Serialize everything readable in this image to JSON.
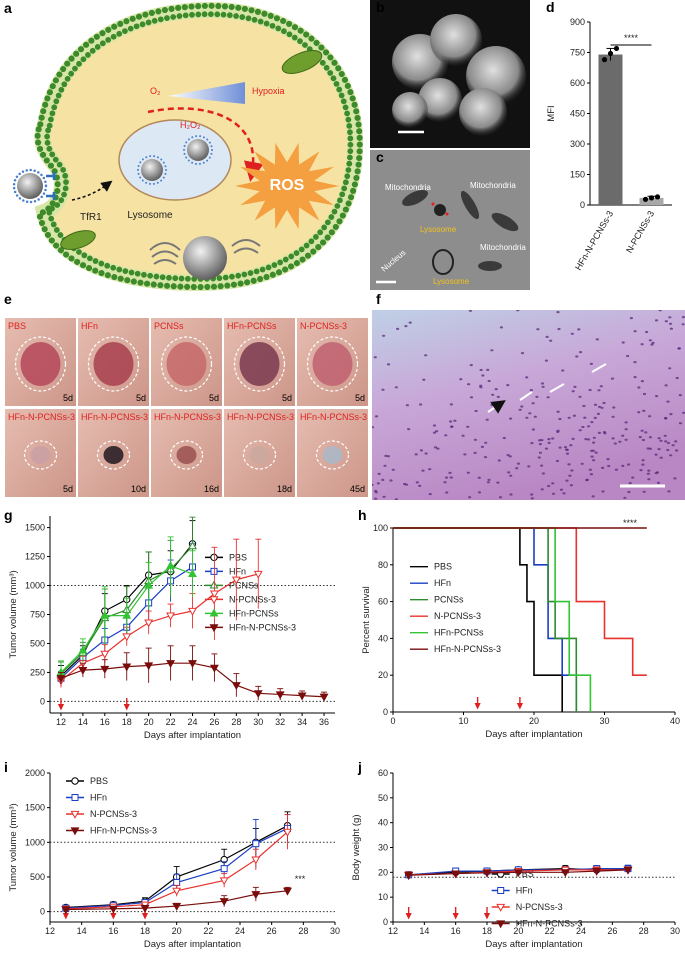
{
  "panel_letters": [
    "a",
    "b",
    "c",
    "d",
    "e",
    "f",
    "g",
    "h",
    "i",
    "j"
  ],
  "illustration": {
    "oxygen": "O₂",
    "hypoxia": "Hypoxia",
    "hydrogen_peroxide": "H₂O₂",
    "ros": "ROS",
    "receptor": "TfR1",
    "lysosome": "Lysosome"
  },
  "micrograph": {
    "labels": [
      "Mitochondria",
      "Mitochondria",
      "Lysosome",
      "Mitochondria",
      "Nucleus",
      "Lysosome"
    ]
  },
  "photos": [
    {
      "group": "PBS",
      "day": "5d"
    },
    {
      "group": "HFn",
      "day": "5d"
    },
    {
      "group": "PCNSs",
      "day": "5d"
    },
    {
      "group": "HFn-PCNSs",
      "day": "5d"
    },
    {
      "group": "N-PCNSs-3",
      "day": "5d"
    },
    {
      "group": "HFn-N-PCNSs-3",
      "day": "5d"
    },
    {
      "group": "HFn-N-PCNSs-3",
      "day": "10d"
    },
    {
      "group": "HFn-N-PCNSs-3",
      "day": "16d"
    },
    {
      "group": "HFn-N-PCNSs-3",
      "day": "18d"
    },
    {
      "group": "HFn-N-PCNSs-3",
      "day": "45d"
    }
  ],
  "chart_data": [
    {
      "type": "bar",
      "categories": [
        "HFn-N-PCNSs-3",
        "N-PCNSs-3"
      ],
      "values": [
        740,
        35
      ],
      "errors": [
        30,
        8
      ],
      "points": [
        [
          715,
          745,
          770
        ],
        [
          28,
          35,
          40
        ]
      ],
      "colors": [
        "#6b6b6b",
        "#a8a8a8"
      ],
      "ylabel": "MFI",
      "ylim": [
        0,
        900
      ],
      "yticks": [
        0,
        150,
        300,
        450,
        600,
        750,
        900
      ],
      "annotation": "****"
    },
    {
      "type": "line",
      "xlabel": "Days after implantation",
      "ylabel": "Tumor volume (mm³)",
      "xlim": [
        11,
        37
      ],
      "xticks": [
        12,
        14,
        16,
        18,
        20,
        22,
        24,
        26,
        28,
        30,
        32,
        34,
        36
      ],
      "ylim": [
        -100,
        1600
      ],
      "yticks": [
        0,
        250,
        500,
        750,
        1000,
        1250,
        1500
      ],
      "reference_lines": [
        0,
        1000
      ],
      "treatment_days": [
        12,
        18
      ],
      "legend": "center-right",
      "series": [
        {
          "name": "PBS",
          "color": "#000000",
          "marker": "circle",
          "filled": false,
          "x": [
            12,
            14,
            16,
            18,
            20,
            22,
            24
          ],
          "values": [
            220,
            400,
            780,
            880,
            1090,
            1120,
            1360
          ],
          "errors": [
            90,
            80,
            150,
            120,
            200,
            180,
            200
          ]
        },
        {
          "name": "HFn",
          "color": "#1a3fc4",
          "marker": "square",
          "filled": false,
          "x": [
            12,
            14,
            16,
            18,
            20,
            22,
            24
          ],
          "values": [
            200,
            380,
            530,
            640,
            850,
            1040,
            1160
          ],
          "errors": [
            60,
            70,
            100,
            100,
            150,
            180,
            200
          ]
        },
        {
          "name": "PCNSs",
          "color": "#2e8b2e",
          "marker": "triangle",
          "filled": false,
          "x": [
            12,
            14,
            16,
            18,
            20,
            22,
            24
          ],
          "values": [
            240,
            420,
            720,
            790,
            1040,
            1140,
            1340
          ],
          "errors": [
            100,
            90,
            250,
            200,
            250,
            250,
            250
          ]
        },
        {
          "name": "N-PCNSs-3",
          "color": "#e8322e",
          "marker": "triangle-down",
          "filled": false,
          "x": [
            12,
            14,
            16,
            18,
            20,
            22,
            24,
            26,
            28,
            30
          ],
          "values": [
            180,
            330,
            410,
            560,
            680,
            740,
            780,
            930,
            1050,
            1100
          ],
          "errors": [
            60,
            60,
            80,
            80,
            100,
            100,
            150,
            400,
            350,
            300
          ]
        },
        {
          "name": "HFn-PCNSs",
          "color": "#33c433",
          "marker": "triangle",
          "filled": true,
          "x": [
            12,
            14,
            16,
            18,
            20,
            22,
            24
          ],
          "values": [
            250,
            440,
            740,
            740,
            1000,
            1170,
            1100
          ],
          "errors": [
            100,
            100,
            250,
            150,
            200,
            250,
            200
          ]
        },
        {
          "name": "HFn-N-PCNSs-3",
          "color": "#7a0c0c",
          "marker": "triangle-down",
          "filled": true,
          "x": [
            12,
            14,
            16,
            18,
            20,
            22,
            24,
            26,
            28,
            30,
            32,
            34,
            36
          ],
          "values": [
            200,
            270,
            280,
            300,
            310,
            330,
            330,
            290,
            140,
            70,
            60,
            50,
            40
          ],
          "errors": [
            50,
            60,
            80,
            120,
            150,
            150,
            150,
            120,
            100,
            60,
            50,
            40,
            40
          ]
        }
      ]
    },
    {
      "type": "step",
      "xlabel": "Days after implantation",
      "ylabel": "Percent survival",
      "xlim": [
        0,
        40
      ],
      "xticks": [
        0,
        10,
        20,
        30,
        40
      ],
      "ylim": [
        0,
        100
      ],
      "yticks": [
        0,
        20,
        40,
        60,
        80,
        100
      ],
      "treatment_days": [
        12,
        18
      ],
      "legend": "center-left",
      "annotation": "****",
      "series": [
        {
          "name": "PBS",
          "color": "#000000",
          "x": [
            0,
            18,
            19,
            20,
            24
          ],
          "values": [
            100,
            80,
            60,
            20,
            0
          ]
        },
        {
          "name": "HFn",
          "color": "#1a3fc4",
          "x": [
            0,
            20,
            22,
            24,
            26
          ],
          "values": [
            100,
            80,
            40,
            20,
            0
          ]
        },
        {
          "name": "PCNSs",
          "color": "#2e8b2e",
          "x": [
            0,
            22,
            23,
            26
          ],
          "values": [
            100,
            60,
            40,
            0
          ]
        },
        {
          "name": "N-PCNSs-3",
          "color": "#e8322e",
          "x": [
            0,
            26,
            30,
            34,
            36
          ],
          "values": [
            100,
            60,
            40,
            20,
            20
          ]
        },
        {
          "name": "HFn-PCNSs",
          "color": "#33c433",
          "x": [
            0,
            23,
            25,
            28
          ],
          "values": [
            100,
            60,
            20,
            0
          ]
        },
        {
          "name": "HFn-N-PCNSs-3",
          "color": "#7a0c0c",
          "x": [
            0,
            36
          ],
          "values": [
            100,
            100
          ]
        }
      ]
    },
    {
      "type": "line",
      "xlabel": "Days after implantation",
      "ylabel": "Tumor volume (mm³)",
      "xlim": [
        12,
        30
      ],
      "xticks": [
        12,
        14,
        16,
        18,
        20,
        22,
        24,
        26,
        28,
        30
      ],
      "ylim": [
        -150,
        2000
      ],
      "yticks": [
        0,
        500,
        1000,
        1500,
        2000
      ],
      "reference_lines": [
        0,
        1000
      ],
      "treatment_days": [
        13,
        16,
        18
      ],
      "legend": "upper-left",
      "annotation": "***",
      "series": [
        {
          "name": "PBS",
          "color": "#000000",
          "marker": "circle",
          "filled": false,
          "x": [
            13,
            16,
            18,
            20,
            23,
            25,
            27
          ],
          "values": [
            60,
            100,
            150,
            500,
            750,
            1000,
            1240
          ],
          "errors": [
            30,
            40,
            50,
            150,
            150,
            200,
            200
          ]
        },
        {
          "name": "HFn",
          "color": "#1a3fc4",
          "marker": "square",
          "filled": false,
          "x": [
            13,
            16,
            18,
            20,
            23,
            25,
            27
          ],
          "values": [
            50,
            90,
            130,
            420,
            620,
            980,
            1200
          ],
          "errors": [
            30,
            30,
            40,
            120,
            100,
            350,
            200
          ]
        },
        {
          "name": "N-PCNSs-3",
          "color": "#e8322e",
          "marker": "triangle-down",
          "filled": false,
          "x": [
            13,
            16,
            18,
            20,
            23,
            25,
            27
          ],
          "values": [
            40,
            70,
            100,
            300,
            450,
            750,
            1150
          ],
          "errors": [
            20,
            30,
            30,
            80,
            100,
            150,
            250
          ]
        },
        {
          "name": "HFn-N-PCNSs-3",
          "color": "#7a0c0c",
          "marker": "triangle-down",
          "filled": true,
          "x": [
            13,
            16,
            18,
            20,
            23,
            25,
            27
          ],
          "values": [
            30,
            40,
            50,
            80,
            150,
            250,
            300
          ],
          "errors": [
            20,
            20,
            30,
            40,
            80,
            100,
            50
          ]
        }
      ]
    },
    {
      "type": "line",
      "xlabel": "Days after implantation",
      "ylabel": "Body weight (g)",
      "xlim": [
        12,
        30
      ],
      "xticks": [
        12,
        14,
        16,
        18,
        20,
        22,
        24,
        26,
        28,
        30
      ],
      "ylim": [
        0,
        60
      ],
      "yticks": [
        0,
        10,
        20,
        30,
        40,
        50,
        60
      ],
      "reference_lines": [
        18
      ],
      "treatment_days": [
        13,
        16,
        18
      ],
      "legend": "lower-center",
      "series": [
        {
          "name": "PBS",
          "color": "#000000",
          "marker": "circle",
          "filled": false,
          "x": [
            13,
            16,
            18,
            20,
            23,
            25,
            27
          ],
          "values": [
            19,
            20,
            20.5,
            21,
            21.5,
            21,
            21.5
          ],
          "errors": [
            1.2,
            1,
            1,
            1,
            1.2,
            1.2,
            1.2
          ]
        },
        {
          "name": "HFn",
          "color": "#1a3fc4",
          "marker": "square",
          "filled": false,
          "x": [
            13,
            16,
            18,
            20,
            23,
            25,
            27
          ],
          "values": [
            19,
            20.5,
            20.5,
            21,
            21,
            21.5,
            21.5
          ],
          "errors": [
            1.2,
            1.2,
            1.2,
            1.2,
            1.2,
            1.2,
            1.4
          ]
        },
        {
          "name": "N-PCNSs-3",
          "color": "#e8322e",
          "marker": "triangle-down",
          "filled": false,
          "x": [
            13,
            16,
            18,
            20,
            23,
            25,
            27
          ],
          "values": [
            19,
            19.5,
            20,
            20.5,
            21,
            21,
            21
          ],
          "errors": [
            1.2,
            1,
            1,
            1,
            1.2,
            1.2,
            1.2
          ]
        },
        {
          "name": "HFn-N-PCNSs-3",
          "color": "#7a0c0c",
          "marker": "triangle-down",
          "filled": true,
          "x": [
            13,
            16,
            18,
            20,
            23,
            25,
            27
          ],
          "values": [
            18.8,
            19.5,
            19.8,
            20,
            20,
            20.5,
            21
          ],
          "errors": [
            1.2,
            1,
            1,
            1,
            1,
            1.2,
            1.2
          ]
        }
      ]
    }
  ]
}
